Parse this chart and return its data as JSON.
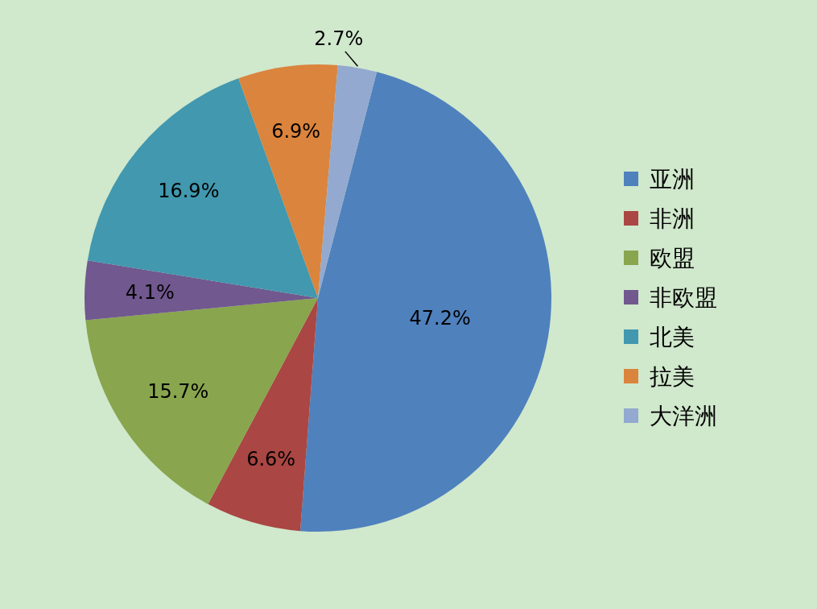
{
  "chart_data": {
    "type": "pie",
    "categories": [
      "亚洲",
      "非洲",
      "欧盟",
      "非欧盟",
      "北美",
      "拉美",
      "大洋洲"
    ],
    "values": [
      47.2,
      6.6,
      15.7,
      4.1,
      16.9,
      6.9,
      2.7
    ],
    "colors": [
      "#4f81bd",
      "#aa4643",
      "#89a54e",
      "#71588f",
      "#4198af",
      "#db843d",
      "#93a9cf"
    ],
    "value_labels": [
      "47.2%",
      "6.6%",
      "15.7%",
      "4.1%",
      "16.9%",
      "6.9%",
      "2.7%"
    ],
    "legend": "right"
  }
}
